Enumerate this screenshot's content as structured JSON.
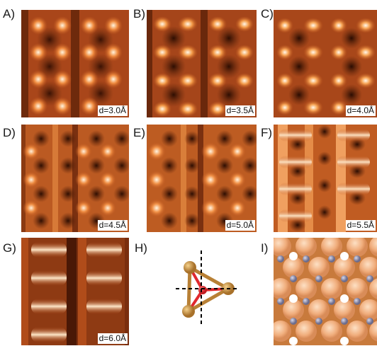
{
  "panels": [
    {
      "letter": "A)",
      "distance": "d=3.0Å"
    },
    {
      "letter": "B)",
      "distance": "d=3.5Å"
    },
    {
      "letter": "C)",
      "distance": "d=4.0Å"
    },
    {
      "letter": "D)",
      "distance": "d=4.5Å"
    },
    {
      "letter": "E)",
      "distance": "d=5.0Å"
    },
    {
      "letter": "F)",
      "distance": "d=5.5Å"
    },
    {
      "letter": "G)",
      "distance": "d=6.0Å"
    },
    {
      "letter": "H)"
    },
    {
      "letter": "I)"
    }
  ],
  "colors": {
    "dark_background": "#5a1f08",
    "mid_tone": "#b5521c",
    "bright_spot": "#fff0d8",
    "atom_gold": "#c8923a",
    "atom_red": "#e0282d",
    "surface_atom": "#f3b98c",
    "adsorbate_atom": "#8c8ca8"
  }
}
